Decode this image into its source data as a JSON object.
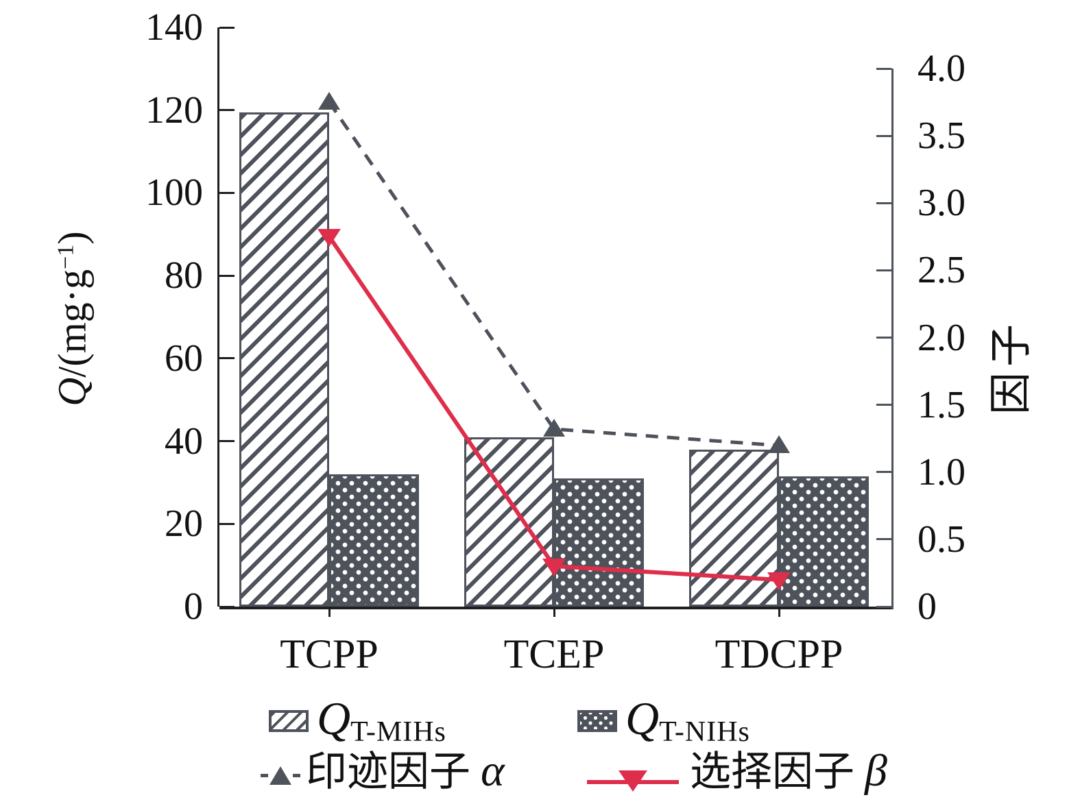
{
  "chart_data": {
    "type": "bar+line",
    "categories": [
      "TCPP",
      "TCEP",
      "TDCPP"
    ],
    "bar_series": [
      {
        "name": "Q T-MIHs",
        "axis": "left",
        "pattern": "diagonal-hatch",
        "values": [
          119.5,
          41,
          38
        ]
      },
      {
        "name": "Q T-NIHs",
        "axis": "left",
        "pattern": "dot-lattice",
        "values": [
          32,
          31,
          31.5
        ]
      }
    ],
    "line_series": [
      {
        "name": "印迹因子 α",
        "axis": "right",
        "style": "dashed",
        "marker": "triangle-up",
        "color": "#4e525b",
        "values": [
          3.75,
          1.32,
          1.2
        ]
      },
      {
        "name": "选择因子 β",
        "axis": "right",
        "style": "solid",
        "marker": "triangle-down",
        "color": "#df2e4c",
        "values": [
          2.75,
          0.3,
          0.2
        ]
      }
    ],
    "left_axis": {
      "label": "Q/(mg·g−1)",
      "min": 0,
      "max": 140,
      "ticks": [
        "140",
        "120",
        "100",
        "80",
        "60",
        "40",
        "20",
        "0"
      ]
    },
    "right_axis": {
      "label": "因子",
      "min": 0,
      "max": 4.0,
      "ticks": [
        "4.0",
        "3.5",
        "3.0",
        "2.5",
        "2.0",
        "1.5",
        "1.0",
        "0.5",
        "0"
      ]
    },
    "grid": false,
    "legend_position": "bottom"
  },
  "axis_labels": {
    "left": {
      "symbol": "Q",
      "mid": "/(mg·g",
      "sup": "−1",
      "end": ")"
    },
    "right": "因子"
  },
  "legend": {
    "items": [
      {
        "swatch": "diagonal-hatch",
        "main": "Q",
        "sub": "T-MIHs"
      },
      {
        "swatch": "dot-lattice",
        "main": "Q",
        "sub": "T-NIHs"
      },
      {
        "marker": "dashed-triangle-up",
        "text": "印迹因子 ",
        "symbol": "α"
      },
      {
        "marker": "solid-triangle-down",
        "text": "选择因子 ",
        "symbol": "β"
      }
    ]
  },
  "colors": {
    "gray": "#4e525b",
    "red": "#df2e4c",
    "axis": "#1d1f24",
    "text": "#111111"
  }
}
